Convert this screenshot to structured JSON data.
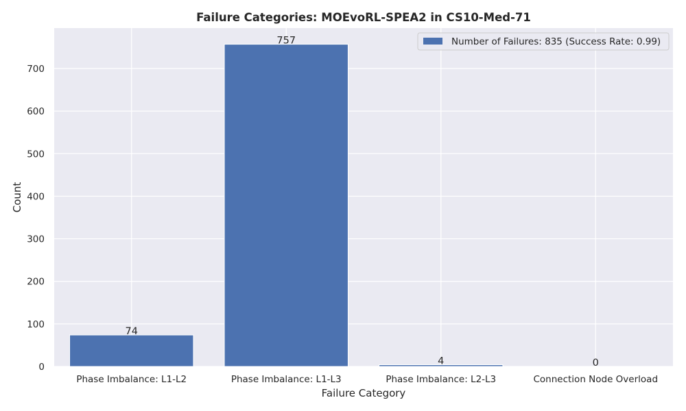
{
  "chart_data": {
    "type": "bar",
    "title": "Failure Categories: MOEvoRL-SPEA2 in CS10-Med-71",
    "xlabel": "Failure Category",
    "ylabel": "Count",
    "categories": [
      "Phase Imbalance: L1-L2",
      "Phase Imbalance: L1-L3",
      "Phase Imbalance: L2-L3",
      "Connection Node Overload"
    ],
    "series": [
      {
        "name": "Number of Failures: 835 (Success Rate: 0.99)",
        "values": [
          74,
          757,
          4,
          0
        ]
      }
    ],
    "data_labels": [
      "74",
      "757",
      "4",
      "0"
    ],
    "ylim": [
      0,
      795
    ],
    "yticks": [
      0,
      100,
      200,
      300,
      400,
      500,
      600,
      700
    ],
    "grid": true,
    "legend_position": "top-right",
    "colors": {
      "bar": "#4c72b0",
      "plot_background": "#eaeaf2",
      "grid": "#ffffff",
      "text": "#262626"
    }
  }
}
